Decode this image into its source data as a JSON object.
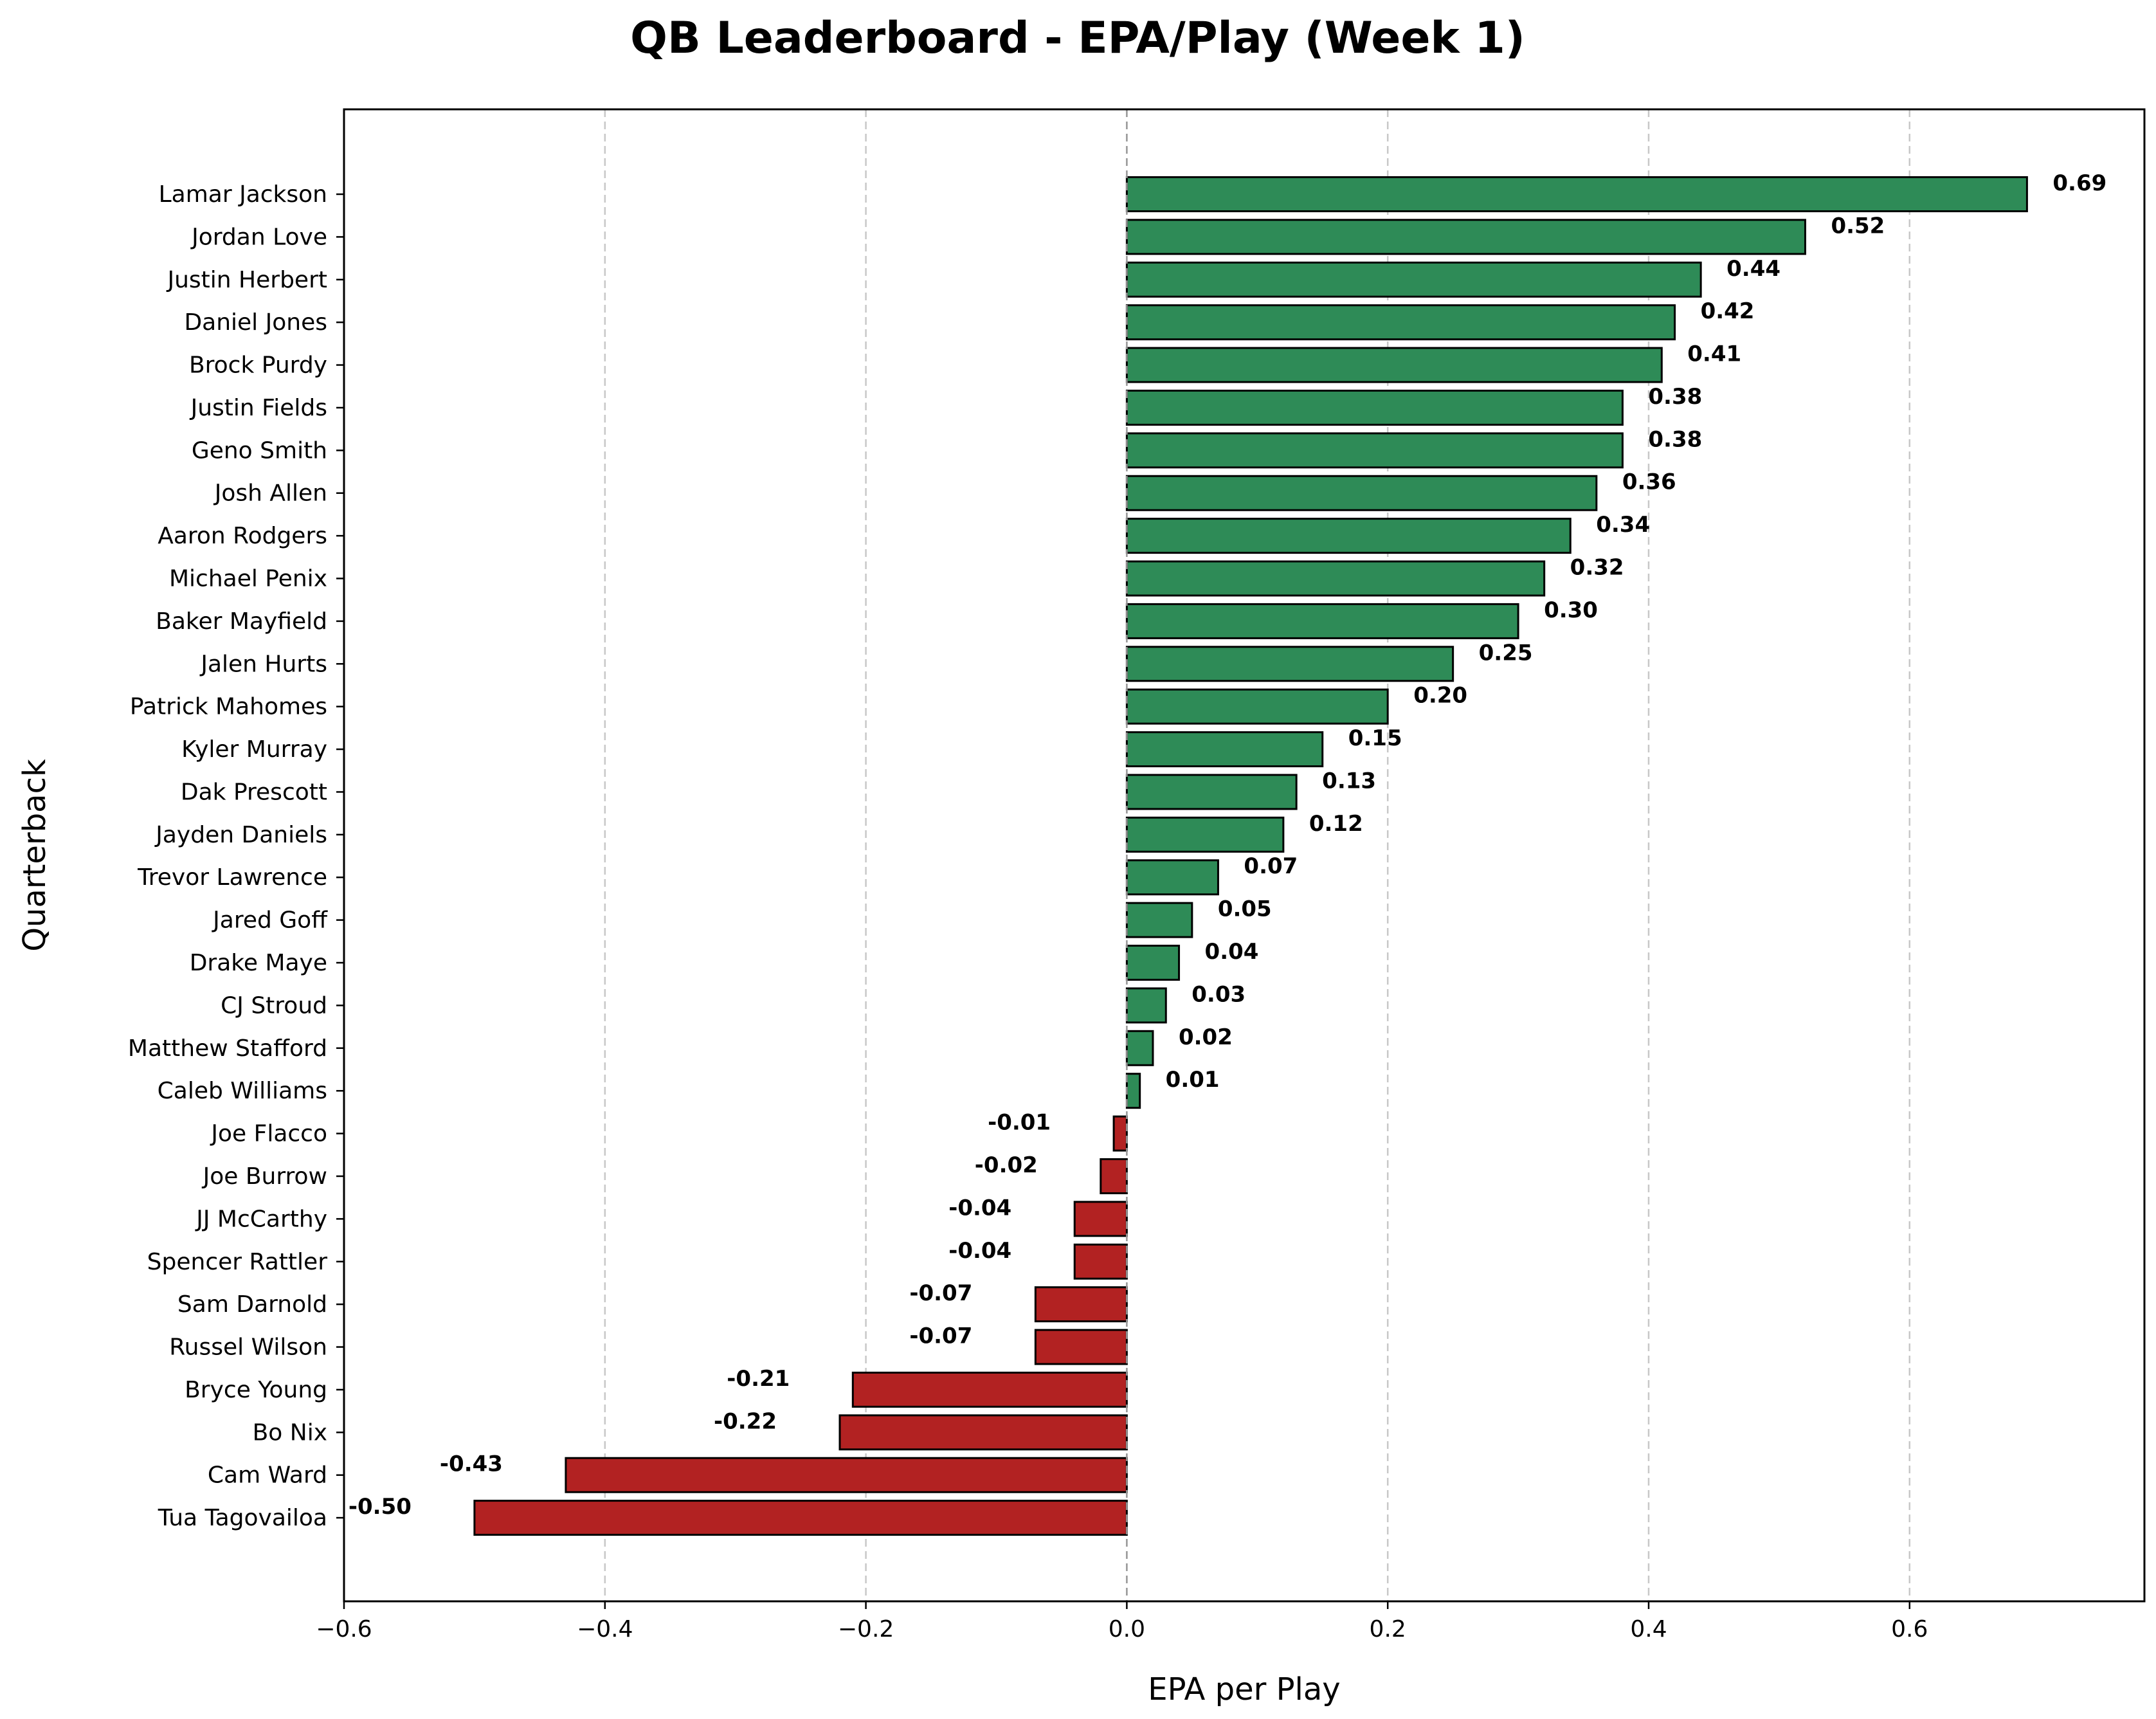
{
  "chart_data": {
    "type": "bar",
    "orientation": "horizontal",
    "title": "QB Leaderboard - EPA/Play (Week 1)",
    "xlabel": "EPA per Play",
    "ylabel": "Quarterback",
    "xlim": [
      -0.6,
      0.78
    ],
    "xticks": [
      -0.6,
      -0.4,
      -0.2,
      0.0,
      0.2,
      0.4,
      0.6
    ],
    "xtick_labels": [
      "−0.6",
      "−0.4",
      "−0.2",
      "0.0",
      "0.2",
      "0.4",
      "0.6"
    ],
    "grid": "x, dashed",
    "colors": {
      "positive": "#2e8b57",
      "negative": "#b22222",
      "edge": "#000000"
    },
    "categories": [
      "Lamar Jackson",
      "Jordan Love",
      "Justin Herbert",
      "Daniel Jones",
      "Brock Purdy",
      "Justin Fields",
      "Geno Smith",
      "Josh Allen",
      "Aaron Rodgers",
      "Michael Penix",
      "Baker Mayfield",
      "Jalen Hurts",
      "Patrick Mahomes",
      "Kyler Murray",
      "Dak Prescott",
      "Jayden Daniels",
      "Trevor Lawrence",
      "Jared Goff",
      "Drake Maye",
      "CJ Stroud",
      "Matthew Stafford",
      "Caleb Williams",
      "Joe Flacco",
      "Joe Burrow",
      "JJ McCarthy",
      "Spencer Rattler",
      "Sam Darnold",
      "Russel Wilson",
      "Bryce Young",
      "Bo Nix",
      "Cam Ward",
      "Tua Tagovailoa"
    ],
    "values": [
      0.69,
      0.52,
      0.44,
      0.42,
      0.41,
      0.38,
      0.38,
      0.36,
      0.34,
      0.32,
      0.3,
      0.25,
      0.2,
      0.15,
      0.13,
      0.12,
      0.07,
      0.05,
      0.04,
      0.03,
      0.02,
      0.01,
      -0.01,
      -0.02,
      -0.04,
      -0.04,
      -0.07,
      -0.07,
      -0.21,
      -0.22,
      -0.43,
      -0.5
    ],
    "value_labels": [
      "0.69",
      "0.52",
      "0.44",
      "0.42",
      "0.41",
      "0.38",
      "0.38",
      "0.36",
      "0.34",
      "0.32",
      "0.30",
      "0.25",
      "0.20",
      "0.15",
      "0.13",
      "0.12",
      "0.07",
      "0.05",
      "0.04",
      "0.03",
      "0.02",
      "0.01",
      "-0.01",
      "-0.02",
      "-0.04",
      "-0.04",
      "-0.07",
      "-0.07",
      "-0.21",
      "-0.22",
      "-0.43",
      "-0.50"
    ]
  }
}
